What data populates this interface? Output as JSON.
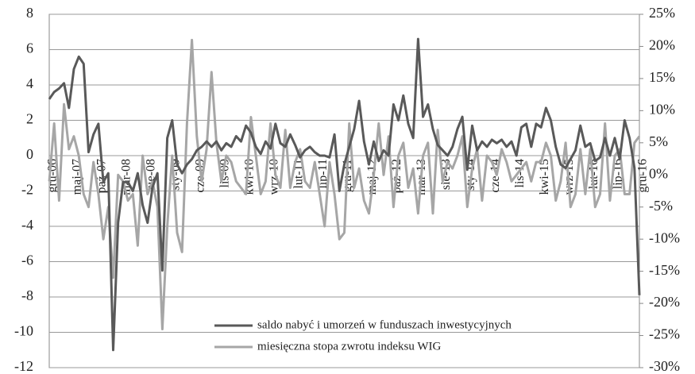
{
  "chart_data": {
    "type": "line",
    "categories": [
      "gru-06",
      null,
      null,
      null,
      null,
      "maj-07",
      null,
      null,
      null,
      null,
      "paź-07",
      null,
      null,
      null,
      null,
      "mar-08",
      null,
      null,
      null,
      null,
      "sie-08",
      null,
      null,
      null,
      null,
      "sty-09",
      null,
      null,
      null,
      null,
      "cze-09",
      null,
      null,
      null,
      null,
      "lis-09",
      null,
      null,
      null,
      null,
      "kwi-10",
      null,
      null,
      null,
      null,
      "wrz-10",
      null,
      null,
      null,
      null,
      "lut-11",
      null,
      null,
      null,
      null,
      "lip-11",
      null,
      null,
      null,
      null,
      "gru-11",
      null,
      null,
      null,
      null,
      "maj-12",
      null,
      null,
      null,
      null,
      "paź-12",
      null,
      null,
      null,
      null,
      "mar-13",
      null,
      null,
      null,
      null,
      "sie-13",
      null,
      null,
      null,
      null,
      "sty-14",
      null,
      null,
      null,
      null,
      "cze-14",
      null,
      null,
      null,
      null,
      "lis-14",
      null,
      null,
      null,
      null,
      "kwi-15",
      null,
      null,
      null,
      null,
      "wrz-15",
      null,
      null,
      null,
      null,
      "lut-16",
      null,
      null,
      null,
      null,
      "lip-16",
      null,
      null,
      null,
      null,
      "gru-16"
    ],
    "series": [
      {
        "name": "saldo nabyć i umorzeń w funduszach inwestycyjnych",
        "color": "#595959",
        "axis": "y",
        "values": [
          3.2,
          3.6,
          3.8,
          4.1,
          2.7,
          4.9,
          5.6,
          5.2,
          0.2,
          1.2,
          1.8,
          -1.5,
          -1.0,
          -11.0,
          -3.8,
          -1.5,
          -1.5,
          -2.0,
          -1.0,
          -2.8,
          -3.8,
          -1.8,
          -1.0,
          -6.5,
          1.0,
          2.0,
          -0.5,
          -1.0,
          -0.5,
          -0.2,
          0.3,
          0.5,
          0.8,
          0.5,
          0.8,
          0.3,
          0.7,
          0.5,
          1.1,
          0.8,
          1.7,
          1.3,
          0.5,
          0.1,
          0.8,
          0.4,
          1.8,
          0.7,
          0.5,
          1.2,
          0.6,
          -0.1,
          0.3,
          0.5,
          0.2,
          0.0,
          0.0,
          -0.1,
          1.2,
          -2.0,
          -0.5,
          0.5,
          1.5,
          3.1,
          0.8,
          -0.5,
          0.8,
          -0.3,
          0.3,
          0.0,
          2.9,
          2.0,
          3.4,
          1.8,
          1.0,
          6.6,
          2.2,
          2.9,
          1.5,
          0.6,
          0.3,
          0.0,
          0.5,
          1.5,
          2.2,
          -0.8,
          1.7,
          0.3,
          0.8,
          0.5,
          0.9,
          0.7,
          0.9,
          0.5,
          0.8,
          0.0,
          1.6,
          1.8,
          0.5,
          1.8,
          1.6,
          2.7,
          2.0,
          0.5,
          -0.5,
          -0.7,
          -0.2,
          0.3,
          1.7,
          0.5,
          0.7,
          -0.3,
          -0.1,
          1.0,
          0.0,
          1.0,
          -0.2,
          2.0,
          1.0,
          -0.7,
          -7.9
        ]
      },
      {
        "name": "miesięczna stopa zwrotu indeksu WIG",
        "color": "#a6a6a6",
        "axis": "y2",
        "values": [
          -1,
          8,
          -4,
          11,
          4,
          6,
          3,
          -3,
          -5,
          2,
          -3,
          -10,
          -5,
          -16,
          0,
          -1,
          -4,
          -3,
          -11,
          3,
          -3,
          -1,
          -5,
          -24,
          -8,
          3,
          -9,
          -12,
          8,
          21,
          6,
          -1,
          4,
          16,
          5,
          -1,
          3,
          2,
          -1,
          -2,
          -3,
          9,
          3,
          -3,
          -1,
          8,
          0,
          -2,
          7,
          -2,
          2,
          4,
          -1,
          -2,
          2,
          -3,
          -8,
          2,
          -3,
          -10,
          -9,
          8,
          -2,
          1,
          -4,
          -6,
          0,
          8,
          0,
          6,
          -5,
          3,
          5,
          -2,
          1,
          -6,
          3,
          5,
          -6,
          7,
          -1,
          2,
          1,
          3,
          6,
          -5,
          1,
          4,
          -4,
          3,
          2,
          0,
          4,
          2,
          -1,
          0,
          1,
          2,
          -1,
          2,
          2,
          5,
          3,
          -4,
          -1,
          5,
          -5,
          -3,
          4,
          -3,
          4,
          -5,
          -3,
          8,
          -4,
          3,
          4,
          -3,
          -3,
          5,
          6
        ]
      }
    ],
    "ylim": [
      -12,
      8
    ],
    "yticks": [
      -12,
      -10,
      -8,
      -6,
      -4,
      -2,
      0,
      2,
      4,
      6,
      8
    ],
    "y2lim": [
      -30,
      25
    ],
    "y2ticks": [
      {
        "value": -30,
        "label": "-30%"
      },
      {
        "value": -25,
        "label": "-25%"
      },
      {
        "value": -20,
        "label": "-20%"
      },
      {
        "value": -15,
        "label": "-15%"
      },
      {
        "value": -10,
        "label": "-10%"
      },
      {
        "value": -5,
        "label": "-5%"
      },
      {
        "value": 0,
        "label": "0%"
      },
      {
        "value": 5,
        "label": "5%"
      },
      {
        "value": 10,
        "label": "10%"
      },
      {
        "value": 15,
        "label": "15%"
      },
      {
        "value": 20,
        "label": "20%"
      },
      {
        "value": 25,
        "label": "25%"
      }
    ],
    "grid": true
  }
}
